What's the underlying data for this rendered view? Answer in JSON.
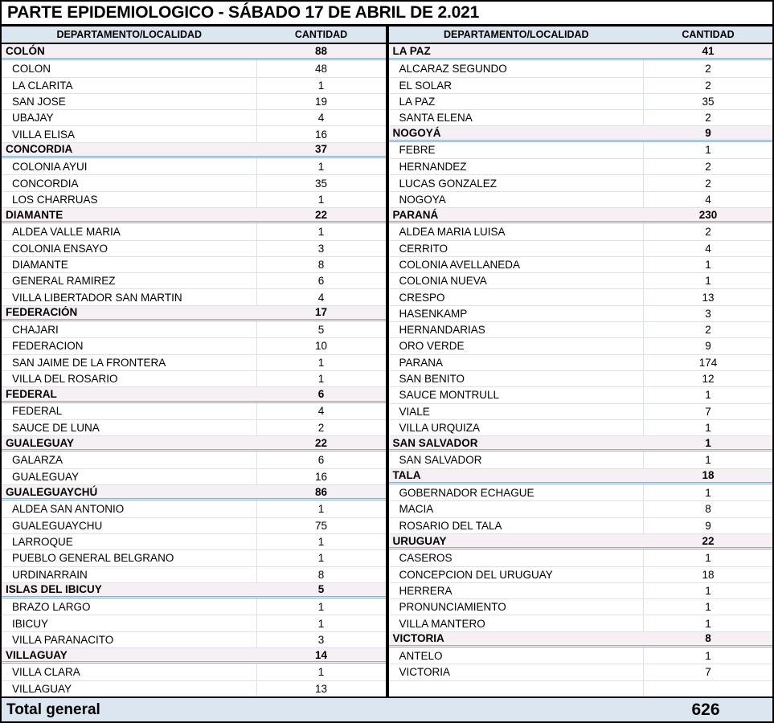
{
  "title": "PARTE EPIDEMIOLOGICO - SÁBADO 17 DE ABRIL DE 2.021",
  "columns": {
    "locality": "DEPARTAMENTO/LOCALIDAD",
    "quantity": "CANTIDAD"
  },
  "total": {
    "label": "Total general",
    "value": "626"
  },
  "colors": {
    "header_bg": "#DCE6F1",
    "dept_row_bg": "#F6F0F5",
    "dept_border": "#92ADCC",
    "row_separator": "#DDE1E9",
    "table_border": "#000000",
    "total_bg": "#DCE6F1"
  },
  "left_rows": [
    {
      "type": "dept",
      "label": "COLÓN",
      "value": "88"
    },
    {
      "type": "loc",
      "label": "COLON",
      "value": "48"
    },
    {
      "type": "loc",
      "label": "LA CLARITA",
      "value": "1"
    },
    {
      "type": "loc",
      "label": "SAN JOSE",
      "value": "19"
    },
    {
      "type": "loc",
      "label": "UBAJAY",
      "value": "4"
    },
    {
      "type": "loc",
      "label": "VILLA ELISA",
      "value": "16"
    },
    {
      "type": "dept",
      "label": "CONCORDIA",
      "value": "37"
    },
    {
      "type": "loc",
      "label": "COLONIA AYUI",
      "value": "1"
    },
    {
      "type": "loc",
      "label": "CONCORDIA",
      "value": "35"
    },
    {
      "type": "loc",
      "label": "LOS CHARRUAS",
      "value": "1"
    },
    {
      "type": "dept",
      "label": "DIAMANTE",
      "value": "22"
    },
    {
      "type": "loc",
      "label": "ALDEA VALLE MARIA",
      "value": "1"
    },
    {
      "type": "loc",
      "label": "COLONIA ENSAYO",
      "value": "3"
    },
    {
      "type": "loc",
      "label": "DIAMANTE",
      "value": "8"
    },
    {
      "type": "loc",
      "label": "GENERAL RAMIREZ",
      "value": "6"
    },
    {
      "type": "loc",
      "label": "VILLA LIBERTADOR SAN MARTIN",
      "value": "4"
    },
    {
      "type": "dept",
      "label": "FEDERACIÓN",
      "value": "17"
    },
    {
      "type": "loc",
      "label": "CHAJARI",
      "value": "5"
    },
    {
      "type": "loc",
      "label": "FEDERACION",
      "value": "10"
    },
    {
      "type": "loc",
      "label": "SAN JAIME DE LA FRONTERA",
      "value": "1"
    },
    {
      "type": "loc",
      "label": "VILLA DEL ROSARIO",
      "value": "1"
    },
    {
      "type": "dept",
      "label": "FEDERAL",
      "value": "6"
    },
    {
      "type": "loc",
      "label": "FEDERAL",
      "value": "4"
    },
    {
      "type": "loc",
      "label": "SAUCE DE LUNA",
      "value": "2"
    },
    {
      "type": "dept",
      "label": "GUALEGUAY",
      "value": "22"
    },
    {
      "type": "loc",
      "label": "GALARZA",
      "value": "6"
    },
    {
      "type": "loc",
      "label": "GUALEGUAY",
      "value": "16"
    },
    {
      "type": "dept",
      "label": "GUALEGUAYCHÚ",
      "value": "86"
    },
    {
      "type": "loc",
      "label": "ALDEA SAN ANTONIO",
      "value": "1"
    },
    {
      "type": "loc",
      "label": "GUALEGUAYCHU",
      "value": "75"
    },
    {
      "type": "loc",
      "label": "LARROQUE",
      "value": "1"
    },
    {
      "type": "loc",
      "label": "PUEBLO GENERAL BELGRANO",
      "value": "1"
    },
    {
      "type": "loc",
      "label": "URDINARRAIN",
      "value": "8"
    },
    {
      "type": "dept",
      "label": "ISLAS DEL IBICUY",
      "value": "5"
    },
    {
      "type": "loc",
      "label": "BRAZO LARGO",
      "value": "1"
    },
    {
      "type": "loc",
      "label": "IBICUY",
      "value": "1"
    },
    {
      "type": "loc",
      "label": "VILLA PARANACITO",
      "value": "3"
    },
    {
      "type": "dept",
      "label": "VILLAGUAY",
      "value": "14"
    },
    {
      "type": "loc",
      "label": "VILLA CLARA",
      "value": "1"
    },
    {
      "type": "loc",
      "label": "VILLAGUAY",
      "value": "13"
    }
  ],
  "right_rows": [
    {
      "type": "dept",
      "label": "LA PAZ",
      "value": "41"
    },
    {
      "type": "loc",
      "label": "ALCARAZ SEGUNDO",
      "value": "2"
    },
    {
      "type": "loc",
      "label": "EL SOLAR",
      "value": "2"
    },
    {
      "type": "loc",
      "label": "LA PAZ",
      "value": "35"
    },
    {
      "type": "loc",
      "label": "SANTA ELENA",
      "value": "2"
    },
    {
      "type": "dept",
      "label": "NOGOYÁ",
      "value": "9"
    },
    {
      "type": "loc",
      "label": "FEBRE",
      "value": "1"
    },
    {
      "type": "loc",
      "label": "HERNANDEZ",
      "value": "2"
    },
    {
      "type": "loc",
      "label": "LUCAS GONZALEZ",
      "value": "2"
    },
    {
      "type": "loc",
      "label": "NOGOYA",
      "value": "4"
    },
    {
      "type": "dept",
      "label": "PARANÁ",
      "value": "230"
    },
    {
      "type": "loc",
      "label": "ALDEA MARIA LUISA",
      "value": "2"
    },
    {
      "type": "loc",
      "label": "CERRITO",
      "value": "4"
    },
    {
      "type": "loc",
      "label": "COLONIA AVELLANEDA",
      "value": "1"
    },
    {
      "type": "loc",
      "label": "COLONIA NUEVA",
      "value": "1"
    },
    {
      "type": "loc",
      "label": "CRESPO",
      "value": "13"
    },
    {
      "type": "loc",
      "label": "HASENKAMP",
      "value": "3"
    },
    {
      "type": "loc",
      "label": "HERNANDARIAS",
      "value": "2"
    },
    {
      "type": "loc",
      "label": "ORO VERDE",
      "value": "9"
    },
    {
      "type": "loc",
      "label": "PARANA",
      "value": "174"
    },
    {
      "type": "loc",
      "label": "SAN BENITO",
      "value": "12"
    },
    {
      "type": "loc",
      "label": "SAUCE MONTRULL",
      "value": "1"
    },
    {
      "type": "loc",
      "label": "VIALE",
      "value": "7"
    },
    {
      "type": "loc",
      "label": "VILLA URQUIZA",
      "value": "1"
    },
    {
      "type": "dept",
      "label": "SAN SALVADOR",
      "value": "1"
    },
    {
      "type": "loc",
      "label": "SAN SALVADOR",
      "value": "1"
    },
    {
      "type": "dept",
      "label": "TALA",
      "value": "18"
    },
    {
      "type": "loc",
      "label": "GOBERNADOR ECHAGUE",
      "value": "1"
    },
    {
      "type": "loc",
      "label": "MACIA",
      "value": "8"
    },
    {
      "type": "loc",
      "label": "ROSARIO DEL TALA",
      "value": "9"
    },
    {
      "type": "dept",
      "label": "URUGUAY",
      "value": "22"
    },
    {
      "type": "loc",
      "label": "CASEROS",
      "value": "1"
    },
    {
      "type": "loc",
      "label": "CONCEPCION DEL URUGUAY",
      "value": "18"
    },
    {
      "type": "loc",
      "label": "HERRERA",
      "value": "1"
    },
    {
      "type": "loc",
      "label": "PRONUNCIAMIENTO",
      "value": "1"
    },
    {
      "type": "loc",
      "label": "VILLA MANTERO",
      "value": "1"
    },
    {
      "type": "dept",
      "label": "VICTORIA",
      "value": "8"
    },
    {
      "type": "loc",
      "label": "ANTELO",
      "value": "1"
    },
    {
      "type": "loc",
      "label": "VICTORIA",
      "value": "7"
    },
    {
      "type": "empty",
      "label": "",
      "value": ""
    }
  ]
}
